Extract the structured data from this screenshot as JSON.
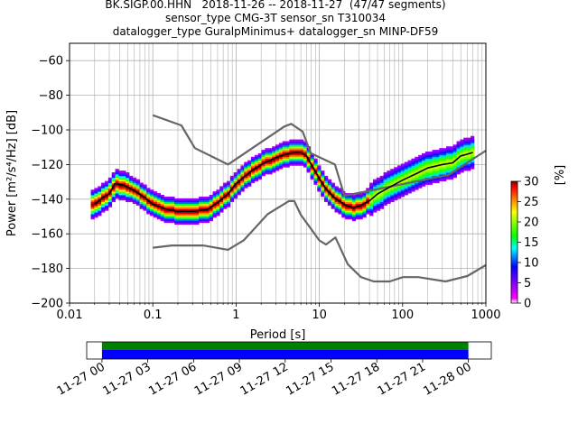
{
  "title": {
    "line1": "BK.SIGP.00.HHN   2018-11-26 -- 2018-11-27  (47/47 segments)",
    "line2": "sensor_type CMG-3T sensor_sn T310034",
    "line3": "datalogger_type GuralpMinimus+ datalogger_sn MINP-DF59"
  },
  "chart_data": [
    {
      "type": "heatmap",
      "title": "BK.SIGP.00.HHN   2018-11-26 -- 2018-11-27  (47/47 segments)",
      "xlabel": "Period [s]",
      "ylabel": "Power [m²/s⁴/Hz] [dB]",
      "xscale": "log",
      "xlim": [
        0.01,
        1000
      ],
      "ylim": [
        -200,
        -50
      ],
      "grid": true,
      "x_tick_labels": [
        "0.01",
        "0.1",
        "1",
        "10",
        "100",
        "1000"
      ],
      "x_tick_values": [
        0.01,
        0.1,
        1,
        10,
        100,
        1000
      ],
      "y_tick_values": [
        -200,
        -180,
        -160,
        -140,
        -120,
        -100,
        -80,
        -60
      ],
      "colorbar": {
        "label": "[%]",
        "ticks": [
          0,
          5,
          10,
          15,
          20,
          25,
          30
        ],
        "range": [
          0,
          30
        ],
        "colors": [
          "#ffffff",
          "#ff00ff",
          "#0000ff",
          "#00ffff",
          "#00ff00",
          "#ffff00",
          "#ff7f00",
          "#ff0000",
          "#7f0000"
        ]
      },
      "series": [
        {
          "name": "",
          "role": "mode",
          "color": "#000000",
          "x": [
            0.02,
            0.025,
            0.03,
            0.035,
            0.045,
            0.06,
            0.08,
            0.1,
            0.15,
            0.2,
            0.3,
            0.45,
            0.6,
            0.8,
            1.0,
            1.5,
            2.0,
            3.0,
            4.0,
            5.0,
            6.0,
            7.0,
            8.0,
            10,
            12,
            15,
            20,
            25,
            30,
            40,
            50,
            70,
            100,
            150,
            200,
            300,
            400,
            500,
            600,
            700
          ],
          "y": [
            -143,
            -139,
            -137,
            -131,
            -132,
            -135,
            -139,
            -143,
            -146,
            -147,
            -147,
            -146,
            -142,
            -137,
            -131,
            -124,
            -120,
            -116,
            -114,
            -113,
            -113,
            -115,
            -120,
            -128,
            -134,
            -139,
            -143,
            -145,
            -144,
            -141,
            -137,
            -133,
            -129,
            -125,
            -122,
            -120,
            -119,
            -115,
            -114,
            -113
          ]
        },
        {
          "name": "",
          "role": "noise-model-high",
          "color": "#666666",
          "x": [
            0.1,
            0.22,
            0.32,
            0.8,
            3.8,
            4.6,
            6.3,
            7.9,
            15.4,
            20,
            354.8,
            1000
          ],
          "y": [
            -91.5,
            -97.4,
            -110.5,
            -120,
            -98,
            -96.5,
            -101,
            -113.5,
            -120,
            -138,
            -126,
            -112
          ]
        },
        {
          "name": "",
          "role": "noise-model-low",
          "color": "#666666",
          "x": [
            0.1,
            0.17,
            0.4,
            0.8,
            1.24,
            2.4,
            4.3,
            5.0,
            6.0,
            10,
            12,
            15.6,
            21.9,
            31.6,
            45,
            70,
            101,
            154,
            328,
            600,
            1000
          ],
          "y": [
            -168,
            -166.7,
            -166.7,
            -169.2,
            -163.7,
            -148.6,
            -141.1,
            -141.1,
            -149,
            -163.8,
            -166.2,
            -162.1,
            -177.5,
            -185,
            -187.5,
            -187.5,
            -185,
            -185,
            -187.5,
            -184.4,
            -178
          ]
        }
      ]
    },
    {
      "type": "timeline",
      "xlim": [
        "2018-11-26 23:00",
        "2018-11-28 01:30"
      ],
      "x_tick_labels": [
        "11-27 00",
        "11-27 03",
        "11-27 06",
        "11-27 09",
        "11-27 12",
        "11-27 15",
        "11-27 18",
        "11-27 21",
        "11-28 00"
      ],
      "coverage_start": "11-27 00",
      "coverage_end": "11-28 00",
      "bar_colors": {
        "top": "#008000",
        "bottom": "#0000ff"
      }
    }
  ]
}
